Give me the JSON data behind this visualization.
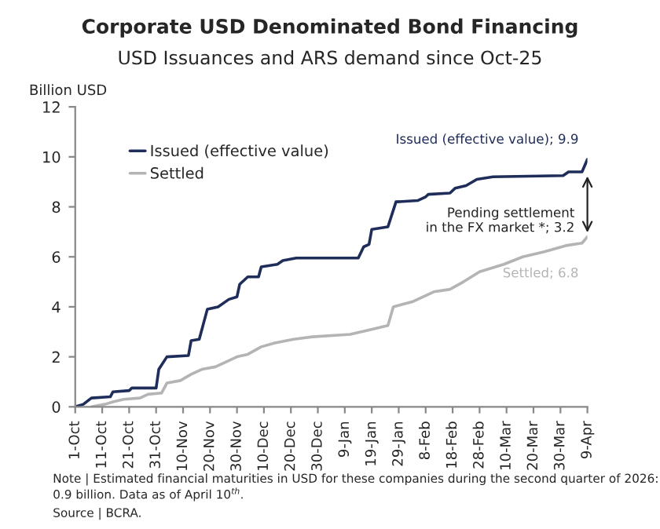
{
  "chart_data": {
    "type": "line",
    "title": "Corporate USD Denominated Bond Financing",
    "subtitle": "USD Issuances and ARS demand since Oct-25",
    "ylabel": "Billion USD",
    "series": [
      {
        "name": "Issued (effective value)",
        "color": "#1f2d5a",
        "x": [
          "2025-10-01",
          "2025-10-04",
          "2025-10-07",
          "2025-10-14",
          "2025-10-15",
          "2025-10-21",
          "2025-10-22",
          "2025-10-31",
          "2025-11-01",
          "2025-11-04",
          "2025-11-12",
          "2025-11-13",
          "2025-11-16",
          "2025-11-19",
          "2025-11-23",
          "2025-11-27",
          "2025-11-30",
          "2025-12-01",
          "2025-12-04",
          "2025-12-08",
          "2025-12-09",
          "2025-12-15",
          "2025-12-17",
          "2025-12-22",
          "2026-01-14",
          "2026-01-16",
          "2026-01-18",
          "2026-01-19",
          "2026-01-25",
          "2026-01-28",
          "2026-02-05",
          "2026-02-08",
          "2026-02-09",
          "2026-02-17",
          "2026-02-19",
          "2026-02-23",
          "2026-02-27",
          "2026-03-05",
          "2026-03-31",
          "2026-04-02",
          "2026-04-07",
          "2026-04-09"
        ],
        "values": [
          0,
          0.1,
          0.35,
          0.4,
          0.6,
          0.65,
          0.75,
          0.75,
          1.5,
          2.0,
          2.05,
          2.65,
          2.7,
          3.9,
          4.0,
          4.3,
          4.4,
          4.9,
          5.2,
          5.2,
          5.6,
          5.7,
          5.85,
          5.95,
          5.95,
          6.4,
          6.5,
          7.1,
          7.2,
          8.2,
          8.25,
          8.4,
          8.5,
          8.55,
          8.75,
          8.85,
          9.1,
          9.2,
          9.25,
          9.4,
          9.4,
          9.9
        ]
      },
      {
        "name": "Settled",
        "color": "#b4b4b4",
        "x": [
          "2025-10-07",
          "2025-10-12",
          "2025-10-15",
          "2025-10-19",
          "2025-10-25",
          "2025-10-28",
          "2025-11-02",
          "2025-11-04",
          "2025-11-09",
          "2025-11-13",
          "2025-11-17",
          "2025-11-22",
          "2025-11-25",
          "2025-11-30",
          "2025-12-04",
          "2025-12-09",
          "2025-12-14",
          "2025-12-21",
          "2025-12-28",
          "2026-01-11",
          "2026-01-17",
          "2026-01-25",
          "2026-01-27",
          "2026-02-03",
          "2026-02-11",
          "2026-02-17",
          "2026-02-22",
          "2026-02-28",
          "2026-03-09",
          "2026-03-16",
          "2026-03-24",
          "2026-04-01",
          "2026-04-07",
          "2026-04-09"
        ],
        "values": [
          0,
          0.1,
          0.2,
          0.3,
          0.35,
          0.5,
          0.55,
          0.95,
          1.05,
          1.3,
          1.5,
          1.6,
          1.75,
          2.0,
          2.1,
          2.4,
          2.55,
          2.7,
          2.8,
          2.9,
          3.05,
          3.25,
          4.0,
          4.2,
          4.6,
          4.7,
          5.0,
          5.4,
          5.7,
          6.0,
          6.2,
          6.45,
          6.55,
          6.8
        ]
      }
    ],
    "xlim": [
      "2025-10-01",
      "2026-04-09"
    ],
    "xticks": [
      {
        "value": "2025-10-01",
        "label": "1-Oct"
      },
      {
        "value": "2025-10-11",
        "label": "11-Oct"
      },
      {
        "value": "2025-10-21",
        "label": "21-Oct"
      },
      {
        "value": "2025-10-31",
        "label": "31-Oct"
      },
      {
        "value": "2025-11-10",
        "label": "10-Nov"
      },
      {
        "value": "2025-11-20",
        "label": "20-Nov"
      },
      {
        "value": "2025-11-30",
        "label": "30-Nov"
      },
      {
        "value": "2025-12-10",
        "label": "10-Dec"
      },
      {
        "value": "2025-12-20",
        "label": "20-Dec"
      },
      {
        "value": "2025-12-30",
        "label": "30-Dec"
      },
      {
        "value": "2026-01-09",
        "label": "9-Jan"
      },
      {
        "value": "2026-01-19",
        "label": "19-Jan"
      },
      {
        "value": "2026-01-29",
        "label": "29-Jan"
      },
      {
        "value": "2026-02-08",
        "label": "8-Feb"
      },
      {
        "value": "2026-02-18",
        "label": "18-Feb"
      },
      {
        "value": "2026-02-28",
        "label": "28-Feb"
      },
      {
        "value": "2026-03-10",
        "label": "10-Mar"
      },
      {
        "value": "2026-03-20",
        "label": "20-Mar"
      },
      {
        "value": "2026-03-30",
        "label": "30-Mar"
      },
      {
        "value": "2026-04-09",
        "label": "9-Apr"
      }
    ],
    "ylim": [
      0,
      12
    ],
    "yticks": [
      0,
      2,
      4,
      6,
      8,
      10,
      12
    ],
    "grid": false,
    "legend": "top left",
    "line_style": "solid",
    "marker": "none",
    "annotations": [
      {
        "text": "Issued (effective value); 9.9",
        "x": "2026-04-09",
        "y": 9.9
      },
      {
        "text": "Settled; 6.8",
        "x": "2026-04-09",
        "y": 6.8
      },
      "Pending settlement\nin the FX market *; 3.2",
      "Note | Estimated financial maturities in USD for these companies during the second quarter of 2026: 0.9 billion. Data as of April 10$^{th}$.",
      "Source | BCRA."
    ]
  }
}
